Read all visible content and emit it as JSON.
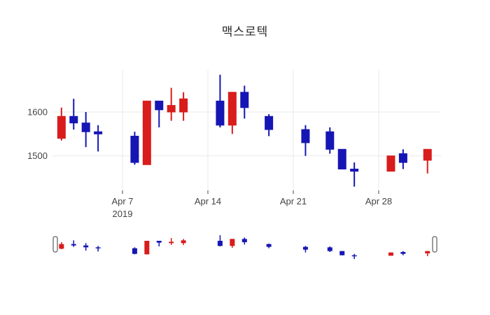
{
  "title": "맥스로텍",
  "chart_data": {
    "type": "candlestick",
    "title": "맥스로텍",
    "xlabel": "",
    "ylabel": "",
    "ylim": [
      1420,
      1700
    ],
    "grid": true,
    "rangeslider": true,
    "y_tick_labels": [
      1600,
      1500
    ],
    "x_tick_labels": [
      {
        "day": 6,
        "label": "Apr 7",
        "sub": "2019"
      },
      {
        "day": 13,
        "label": "Apr 14",
        "sub": ""
      },
      {
        "day": 20,
        "label": "Apr 21",
        "sub": ""
      },
      {
        "day": 27,
        "label": "Apr 28",
        "sub": ""
      }
    ],
    "series": [
      {
        "date": "2019-04-02",
        "day": 1,
        "open": 1540,
        "high": 1610,
        "low": 1535,
        "close": 1590
      },
      {
        "date": "2019-04-03",
        "day": 2,
        "open": 1590,
        "high": 1630,
        "low": 1560,
        "close": 1575
      },
      {
        "date": "2019-04-04",
        "day": 3,
        "open": 1575,
        "high": 1600,
        "low": 1520,
        "close": 1555
      },
      {
        "date": "2019-04-05",
        "day": 4,
        "open": 1555,
        "high": 1570,
        "low": 1510,
        "close": 1550
      },
      {
        "date": "2019-04-08",
        "day": 7,
        "open": 1545,
        "high": 1555,
        "low": 1480,
        "close": 1485
      },
      {
        "date": "2019-04-09",
        "day": 8,
        "open": 1480,
        "high": 1625,
        "low": 1480,
        "close": 1625
      },
      {
        "date": "2019-04-10",
        "day": 9,
        "open": 1625,
        "high": 1625,
        "low": 1565,
        "close": 1605
      },
      {
        "date": "2019-04-11",
        "day": 10,
        "open": 1600,
        "high": 1655,
        "low": 1580,
        "close": 1615
      },
      {
        "date": "2019-04-12",
        "day": 11,
        "open": 1600,
        "high": 1645,
        "low": 1580,
        "close": 1630
      },
      {
        "date": "2019-04-15",
        "day": 14,
        "open": 1625,
        "high": 1685,
        "low": 1565,
        "close": 1570
      },
      {
        "date": "2019-04-16",
        "day": 15,
        "open": 1570,
        "high": 1645,
        "low": 1550,
        "close": 1645
      },
      {
        "date": "2019-04-17",
        "day": 16,
        "open": 1645,
        "high": 1660,
        "low": 1585,
        "close": 1610
      },
      {
        "date": "2019-04-19",
        "day": 18,
        "open": 1590,
        "high": 1595,
        "low": 1545,
        "close": 1560
      },
      {
        "date": "2019-04-22",
        "day": 21,
        "open": 1560,
        "high": 1570,
        "low": 1500,
        "close": 1530
      },
      {
        "date": "2019-04-24",
        "day": 23,
        "open": 1555,
        "high": 1565,
        "low": 1505,
        "close": 1515
      },
      {
        "date": "2019-04-25",
        "day": 24,
        "open": 1515,
        "high": 1515,
        "low": 1470,
        "close": 1470
      },
      {
        "date": "2019-04-26",
        "day": 25,
        "open": 1470,
        "high": 1485,
        "low": 1430,
        "close": 1465
      },
      {
        "date": "2019-04-29",
        "day": 28,
        "open": 1465,
        "high": 1500,
        "low": 1465,
        "close": 1500
      },
      {
        "date": "2019-04-30",
        "day": 29,
        "open": 1505,
        "high": 1515,
        "low": 1470,
        "close": 1485
      },
      {
        "date": "2019-05-02",
        "day": 31,
        "open": 1490,
        "high": 1515,
        "low": 1460,
        "close": 1515
      }
    ],
    "colors": {
      "increasing": "#d91c1c",
      "decreasing": "#1616b4",
      "grid": "#e9e9e9",
      "axis_text": "#444444",
      "title_text": "#2a2a2a",
      "handle_fill": "#ffffff",
      "handle_border": "#5c5c5c",
      "background": "#ffffff"
    }
  }
}
